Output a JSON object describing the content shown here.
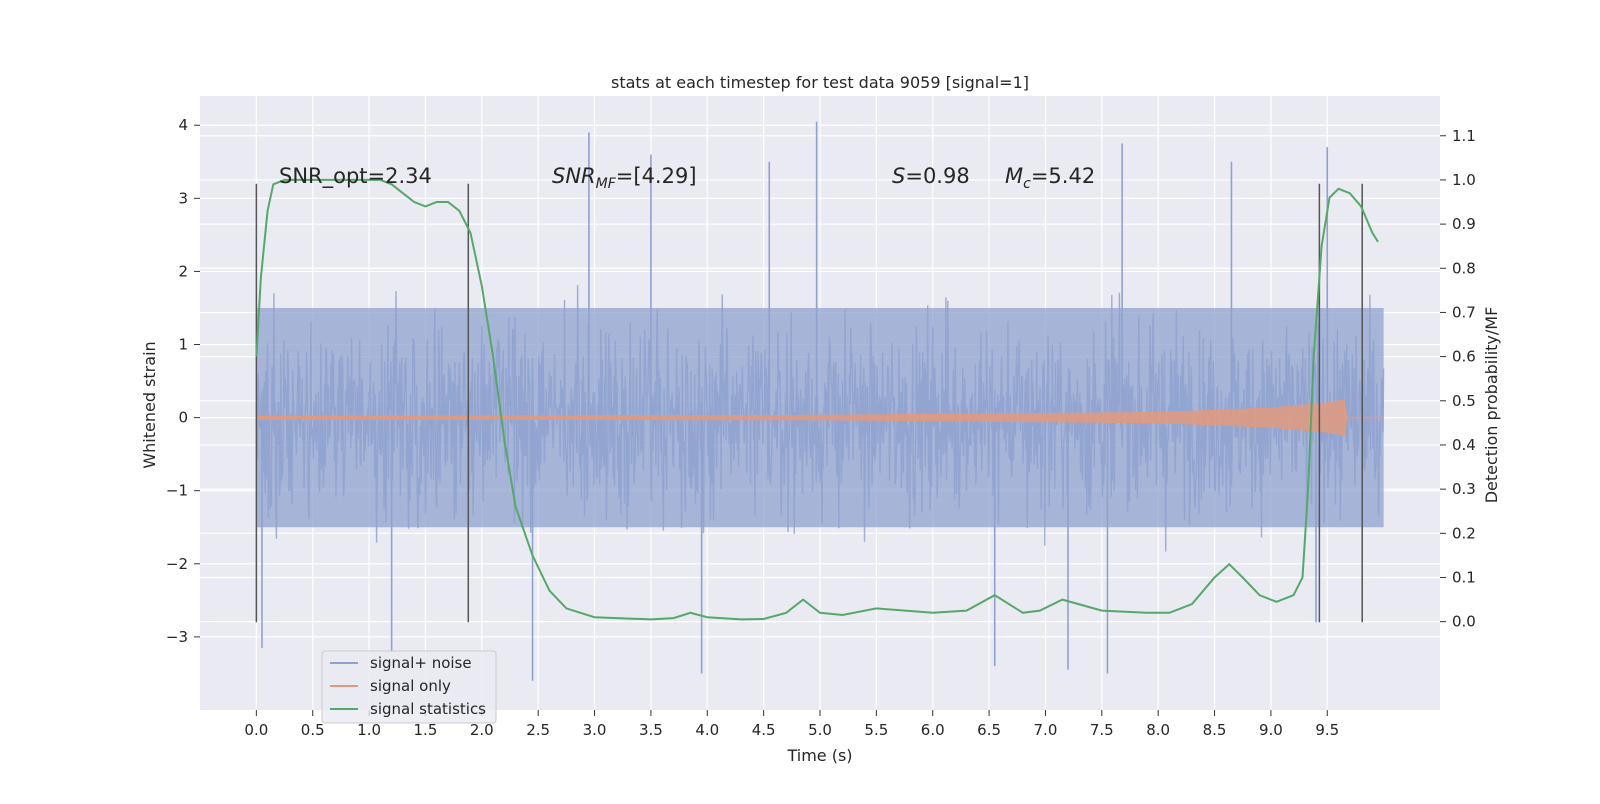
{
  "chart_data": {
    "type": "line",
    "title": "stats at each timestep for test data 9059 [signal=1]",
    "xlabel": "Time (s)",
    "ylabel": "Whitened strain",
    "ylabel_right": "Detection probability/MF",
    "xlim": [
      -0.5,
      10.5
    ],
    "ylim": [
      -4,
      4.4
    ],
    "ylim_right": [
      -0.2,
      1.19
    ],
    "x_ticks": [
      "0.0",
      "0.5",
      "1.0",
      "1.5",
      "2.0",
      "2.5",
      "3.0",
      "3.5",
      "4.0",
      "4.5",
      "5.0",
      "5.5",
      "6.0",
      "6.5",
      "7.0",
      "7.5",
      "8.0",
      "8.5",
      "9.0",
      "9.5"
    ],
    "y_ticks": [
      "−3",
      "−2",
      "−1",
      "0",
      "1",
      "2",
      "3",
      "4"
    ],
    "y_ticks_right": [
      "0.0",
      "0.1",
      "0.2",
      "0.3",
      "0.4",
      "0.5",
      "0.6",
      "0.7",
      "0.8",
      "0.9",
      "1.0",
      "1.1"
    ],
    "grid": true,
    "legend_position": "lower-left",
    "annotations": {
      "snr_opt": "SNR_opt=2.34",
      "snr_mf_base": "SNR",
      "snr_mf_sub": "MF",
      "snr_mf_rest": "=[4.29]",
      "s_sym": "S",
      "s_val": "=0.98",
      "mc_sym": "M",
      "mc_sub": "c",
      "mc_val": "=5.42"
    },
    "vertical_markers": [
      {
        "x": 0.0,
        "y_range": [
          -2.8,
          3.2
        ]
      },
      {
        "x": 1.88,
        "y_range": [
          -2.8,
          3.2
        ]
      },
      {
        "x": 9.43,
        "y_range": [
          -2.8,
          3.2
        ]
      },
      {
        "x": 9.81,
        "y_range": [
          -2.8,
          3.2
        ]
      }
    ],
    "series": [
      {
        "name": "signal+ noise",
        "color": "#8fa2cf",
        "axis": "left",
        "x_range": [
          0,
          10
        ],
        "envelope_typical": [
          -1.5,
          1.5
        ],
        "peaks": [
          {
            "x": 2.95,
            "y": 3.9
          },
          {
            "x": 4.97,
            "y": 4.05
          },
          {
            "x": 7.68,
            "y": 3.75
          },
          {
            "x": 9.5,
            "y": 3.7
          },
          {
            "x": 8.65,
            "y": 3.5
          },
          {
            "x": 4.55,
            "y": 3.5
          },
          {
            "x": 3.5,
            "y": 3.6
          },
          {
            "x": 2.45,
            "y": -3.6
          },
          {
            "x": 3.95,
            "y": -3.5
          },
          {
            "x": 6.55,
            "y": -3.4
          },
          {
            "x": 7.2,
            "y": -3.45
          },
          {
            "x": 7.55,
            "y": -3.5
          },
          {
            "x": 0.05,
            "y": -3.15
          },
          {
            "x": 1.2,
            "y": -3.2
          },
          {
            "x": 9.4,
            "y": -2.8
          }
        ]
      },
      {
        "name": "signal only",
        "color": "#e09a7f",
        "axis": "left",
        "x_range": [
          0,
          10
        ],
        "description_points": [
          {
            "x": 0.0,
            "amp": 0.02
          },
          {
            "x": 5.0,
            "amp": 0.03
          },
          {
            "x": 8.0,
            "amp": 0.07
          },
          {
            "x": 9.0,
            "amp": 0.13
          },
          {
            "x": 9.5,
            "amp": 0.2
          },
          {
            "x": 9.65,
            "amp": 0.24
          },
          {
            "x": 9.68,
            "amp": 0.0
          }
        ]
      },
      {
        "name": "signal statistics",
        "color": "#55a868",
        "axis": "right",
        "points": [
          [
            0.0,
            0.6
          ],
          [
            0.04,
            0.78
          ],
          [
            0.1,
            0.93
          ],
          [
            0.15,
            0.99
          ],
          [
            0.25,
            1.0
          ],
          [
            0.5,
            1.0
          ],
          [
            0.8,
            1.0
          ],
          [
            1.0,
            1.0
          ],
          [
            1.1,
            1.0
          ],
          [
            1.2,
            0.99
          ],
          [
            1.3,
            0.97
          ],
          [
            1.4,
            0.95
          ],
          [
            1.5,
            0.94
          ],
          [
            1.6,
            0.95
          ],
          [
            1.7,
            0.95
          ],
          [
            1.8,
            0.93
          ],
          [
            1.9,
            0.88
          ],
          [
            2.0,
            0.76
          ],
          [
            2.1,
            0.6
          ],
          [
            2.2,
            0.41
          ],
          [
            2.3,
            0.26
          ],
          [
            2.45,
            0.15
          ],
          [
            2.6,
            0.07
          ],
          [
            2.75,
            0.03
          ],
          [
            3.0,
            0.01
          ],
          [
            3.5,
            0.005
          ],
          [
            3.7,
            0.008
          ],
          [
            3.85,
            0.02
          ],
          [
            4.0,
            0.01
          ],
          [
            4.3,
            0.005
          ],
          [
            4.5,
            0.006
          ],
          [
            4.7,
            0.02
          ],
          [
            4.85,
            0.05
          ],
          [
            5.0,
            0.02
          ],
          [
            5.2,
            0.015
          ],
          [
            5.5,
            0.03
          ],
          [
            6.0,
            0.02
          ],
          [
            6.3,
            0.025
          ],
          [
            6.55,
            0.06
          ],
          [
            6.8,
            0.02
          ],
          [
            6.95,
            0.025
          ],
          [
            7.15,
            0.05
          ],
          [
            7.5,
            0.025
          ],
          [
            7.9,
            0.02
          ],
          [
            8.1,
            0.02
          ],
          [
            8.3,
            0.04
          ],
          [
            8.5,
            0.1
          ],
          [
            8.63,
            0.13
          ],
          [
            8.75,
            0.1
          ],
          [
            8.9,
            0.06
          ],
          [
            9.05,
            0.045
          ],
          [
            9.2,
            0.06
          ],
          [
            9.28,
            0.1
          ],
          [
            9.33,
            0.3
          ],
          [
            9.38,
            0.6
          ],
          [
            9.45,
            0.85
          ],
          [
            9.52,
            0.96
          ],
          [
            9.6,
            0.98
          ],
          [
            9.7,
            0.97
          ],
          [
            9.8,
            0.94
          ],
          [
            9.9,
            0.88
          ],
          [
            9.95,
            0.86
          ]
        ]
      }
    ]
  }
}
